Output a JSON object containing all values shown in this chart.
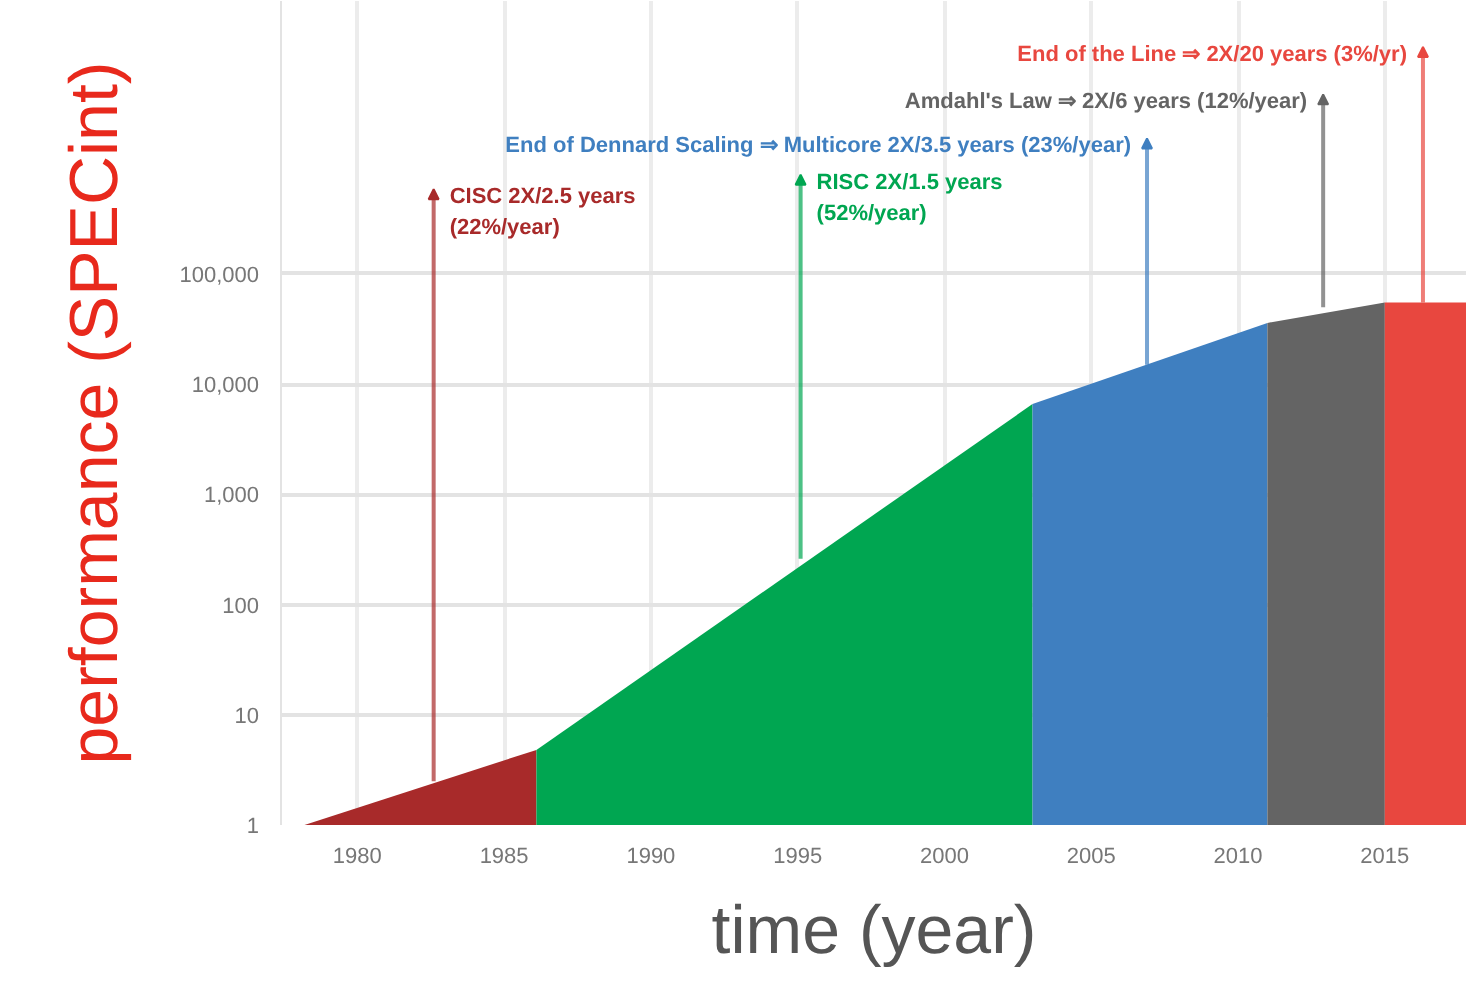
{
  "chart_data": {
    "type": "area",
    "xlabel": "time (year)",
    "ylabel": "performance (SPECint)",
    "log": "y",
    "grid": true,
    "xlim": [
      1977.4,
      2017.8
    ],
    "xticks": [
      1980,
      1985,
      1990,
      1995,
      2000,
      2005,
      2010,
      2015
    ],
    "ylim": [
      1,
      30000000
    ],
    "yticks": [
      1,
      10,
      100,
      {
        "value": 1000,
        "label": "1,000"
      },
      {
        "value": 10000,
        "label": "10,000"
      },
      {
        "value": 100000,
        "label": "100,000"
      }
    ],
    "series": [
      {
        "color": "#a82a2a",
        "x": [
          1978.2,
          1986.1
        ],
        "values": [
          1,
          4.8
        ]
      },
      {
        "color": "#00a651",
        "x": [
          1986.1,
          2003
        ],
        "values": [
          4.8,
          6600
        ]
      },
      {
        "color": "#3f7fc0",
        "x": [
          2003,
          2011
        ],
        "values": [
          6600,
          36000
        ]
      },
      {
        "color": "#646464",
        "x": [
          2011,
          2015
        ],
        "values": [
          36000,
          55000
        ]
      },
      {
        "color": "#e8473f",
        "x": [
          2015,
          2017.8
        ],
        "values": [
          55000,
          55000
        ]
      }
    ],
    "annotations": [
      {
        "text": "CISC 2X/2.5 years\n(22%/year)",
        "x": 1982.6,
        "y": 2.5
      },
      {
        "text": "RISC 2X/1.5 years\n(52%/year)",
        "x": 1995.1,
        "y": 260
      },
      {
        "text": "End of Dennard Scaling ⇒ Multicore 2X/3.5 years (23%/year)",
        "x": 2006.9,
        "y": 15000
      },
      {
        "text": "Amdahl's Law ⇒ 2X/6 years (12%/year)",
        "x": 2012.9,
        "y": 50000
      },
      {
        "text": "End of the Line ⇒ 2X/20 years (3%/yr)",
        "x": 2016.3,
        "y": 55000
      }
    ]
  }
}
